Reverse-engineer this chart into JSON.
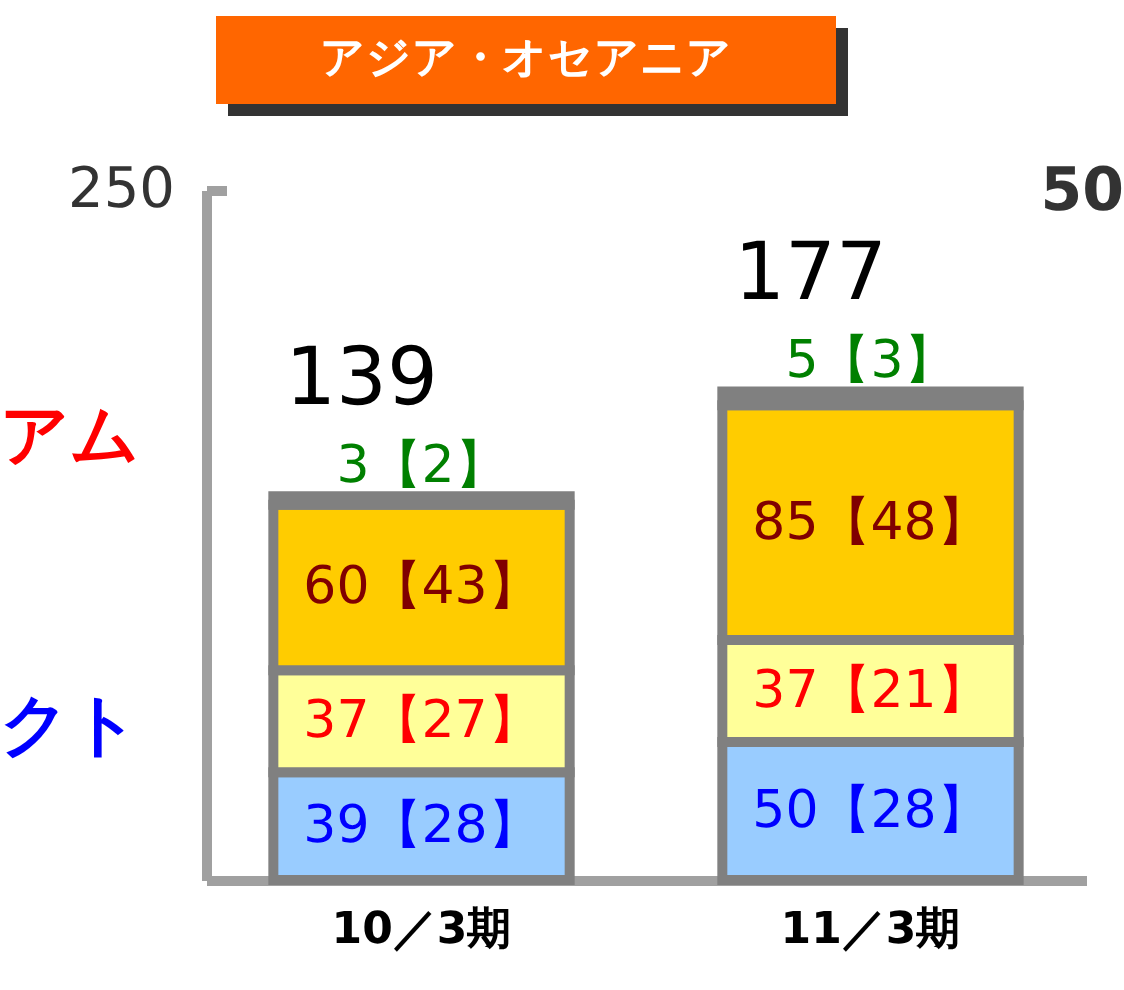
{
  "chart_data": {
    "type": "bar",
    "title": "アジア・オセアニア",
    "stacked": true,
    "categories": [
      "10／3期",
      "11／3期"
    ],
    "series": [
      {
        "color": "#99ccff",
        "values": [
          39,
          50
        ],
        "value_labels": [
          "39【28】",
          "50【28】"
        ]
      },
      {
        "color": "#ffff99",
        "values": [
          37,
          37
        ],
        "value_labels": [
          "37【27】",
          "37【21】"
        ]
      },
      {
        "color": "#ffcc00",
        "values": [
          60,
          85
        ],
        "value_labels": [
          "60【43】",
          "85【48】"
        ]
      },
      {
        "color": "#808080",
        "values": [
          3,
          5
        ],
        "value_labels": [
          "3【2】",
          "5【3】"
        ]
      }
    ],
    "totals": [
      "139",
      "177"
    ],
    "ylim": [
      0,
      250
    ],
    "yticks": [
      250
    ],
    "grid": false,
    "annotations": [
      "アム",
      "クト",
      "50"
    ]
  }
}
